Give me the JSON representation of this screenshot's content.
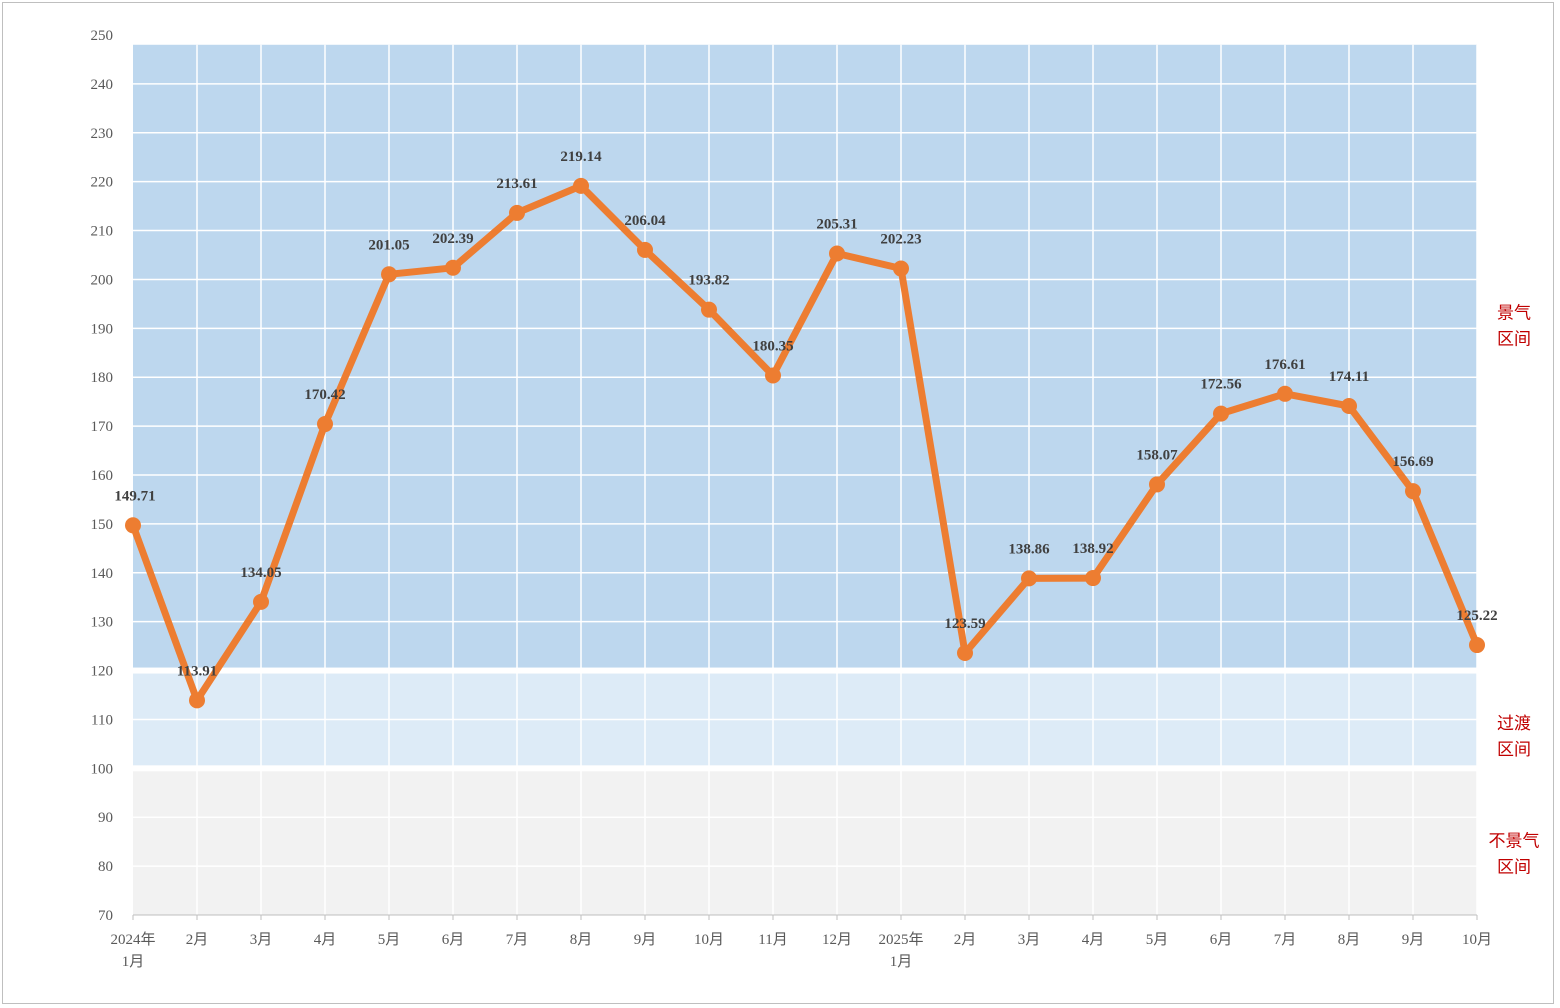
{
  "chart_data": {
    "type": "line",
    "categories": [
      [
        "2024年",
        "1月"
      ],
      [
        "2月"
      ],
      [
        "3月"
      ],
      [
        "4月"
      ],
      [
        "5月"
      ],
      [
        "6月"
      ],
      [
        "7月"
      ],
      [
        "8月"
      ],
      [
        "9月"
      ],
      [
        "10月"
      ],
      [
        "11月"
      ],
      [
        "12月"
      ],
      [
        "2025年",
        "1月"
      ],
      [
        "2月"
      ],
      [
        "3月"
      ],
      [
        "4月"
      ],
      [
        "5月"
      ],
      [
        "6月"
      ],
      [
        "7月"
      ],
      [
        "8月"
      ],
      [
        "9月"
      ],
      [
        "10月"
      ]
    ],
    "series": [
      {
        "values": [
          149.71,
          113.91,
          134.05,
          170.42,
          201.05,
          202.39,
          213.61,
          219.14,
          206.04,
          193.82,
          180.35,
          205.31,
          202.23,
          123.59,
          138.86,
          138.92,
          158.07,
          172.56,
          176.61,
          174.11,
          156.69,
          125.22
        ],
        "color": "#ed7d31",
        "labels": [
          "149.71",
          "113.91",
          "134.05",
          "170.42",
          "201.05",
          "202.39",
          "213.61",
          "219.14",
          "206.04",
          "193.82",
          "180.35",
          "205.31",
          "202.23",
          "123.59",
          "138.86",
          "138.92",
          "158.07",
          "172.56",
          "176.61",
          "174.11",
          "156.69",
          "125.22"
        ]
      }
    ],
    "ylim": [
      70,
      250
    ],
    "yticks": [
      70,
      80,
      90,
      100,
      110,
      120,
      130,
      140,
      150,
      160,
      170,
      180,
      190,
      200,
      210,
      220,
      230,
      240,
      250
    ],
    "ytick_labels": [
      "70",
      "80",
      "90",
      "100",
      "110",
      "120",
      "130",
      "140",
      "150",
      "160",
      "170",
      "180",
      "190",
      "200",
      "210",
      "220",
      "230",
      "240",
      "250"
    ],
    "grid": true,
    "bands": [
      {
        "from": 120,
        "to": 250,
        "color": "#bdd7ee",
        "label": [
          "景气",
          "区间"
        ]
      },
      {
        "from": 100,
        "to": 120,
        "color": "#ddebf7",
        "label": [
          "过渡",
          "区间"
        ]
      },
      {
        "from": 70,
        "to": 100,
        "color": "#f2f2f2",
        "label": [
          "不景气",
          "区间"
        ]
      }
    ]
  }
}
